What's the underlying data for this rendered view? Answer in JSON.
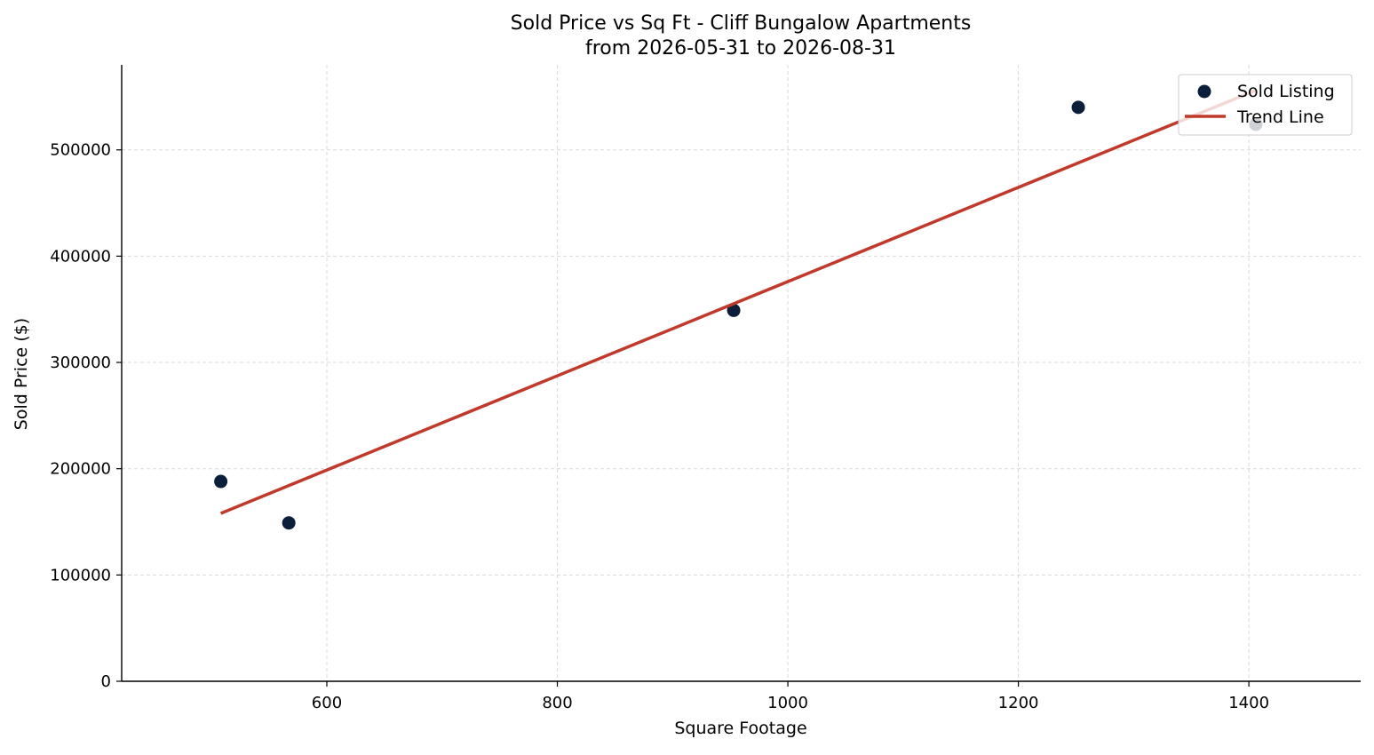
{
  "colors": {
    "point": "#0b1f3a",
    "trend": "#c0392b",
    "grid": "#d9d9d9",
    "axis": "#000000",
    "legend_border": "#cccccc"
  },
  "chart_data": {
    "type": "scatter",
    "title": "Sold Price vs Sq Ft - Cliff Bungalow Apartments",
    "subtitle": "from 2026-05-31 to 2026-08-31",
    "xlabel": "Square Footage",
    "ylabel": "Sold Price ($)",
    "xlim": [
      422,
      1497
    ],
    "ylim": [
      0,
      580000
    ],
    "xticks": [
      600,
      800,
      1000,
      1200,
      1400
    ],
    "yticks": [
      0,
      100000,
      200000,
      300000,
      400000,
      500000
    ],
    "grid": true,
    "legend_position": "top-right",
    "series": [
      {
        "name": "Sold Listing",
        "kind": "scatter",
        "points": [
          {
            "x": 508,
            "y": 188000
          },
          {
            "x": 567,
            "y": 149000
          },
          {
            "x": 953,
            "y": 349000
          },
          {
            "x": 1252,
            "y": 540000
          },
          {
            "x": 1406,
            "y": 524000
          }
        ]
      },
      {
        "name": "Trend Line",
        "kind": "line",
        "points": [
          {
            "x": 508,
            "y": 158000
          },
          {
            "x": 1406,
            "y": 556000
          }
        ]
      }
    ]
  }
}
